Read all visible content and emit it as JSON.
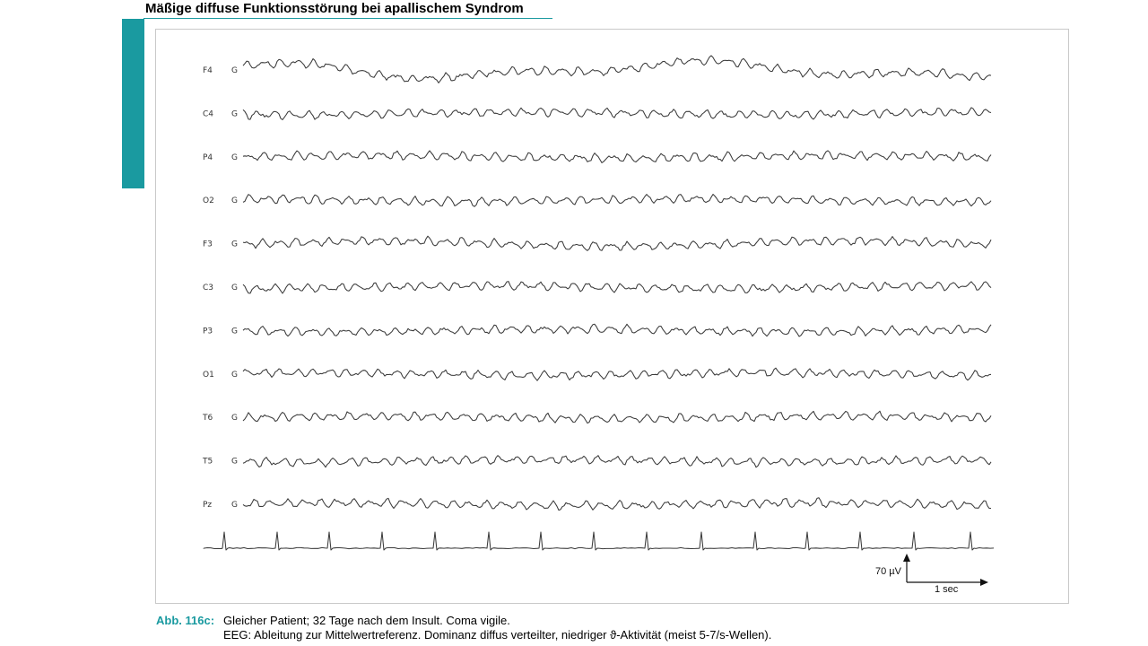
{
  "title": "Mäßige diffuse Funktionsstörung bei apallischem Syndrom",
  "colors": {
    "accent": "#1a9aa0",
    "trace": "#3a3a3a",
    "frame": "#c9c9c9"
  },
  "eeg": {
    "channels": [
      {
        "name": "F4",
        "ref": "G"
      },
      {
        "name": "C4",
        "ref": "G"
      },
      {
        "name": "P4",
        "ref": "G"
      },
      {
        "name": "O2",
        "ref": "G"
      },
      {
        "name": "F3",
        "ref": "G"
      },
      {
        "name": "C3",
        "ref": "G"
      },
      {
        "name": "P3",
        "ref": "G"
      },
      {
        "name": "O1",
        "ref": "G"
      },
      {
        "name": "T6",
        "ref": "G"
      },
      {
        "name": "T5",
        "ref": "G"
      },
      {
        "name": "Pz",
        "ref": "G"
      }
    ],
    "ecg_trace": true,
    "scale": {
      "amplitude": "70 µV",
      "time": "1 sec"
    }
  },
  "caption": {
    "label": "Abb. 116c:",
    "line1": "Gleicher Patient; 32 Tage nach dem Insult. Coma vigile.",
    "line2": "EEG: Ableitung zur Mittelwertreferenz. Dominanz diffus verteilter, niedriger ϑ-Aktivität (meist 5-7/s-Wellen)."
  }
}
